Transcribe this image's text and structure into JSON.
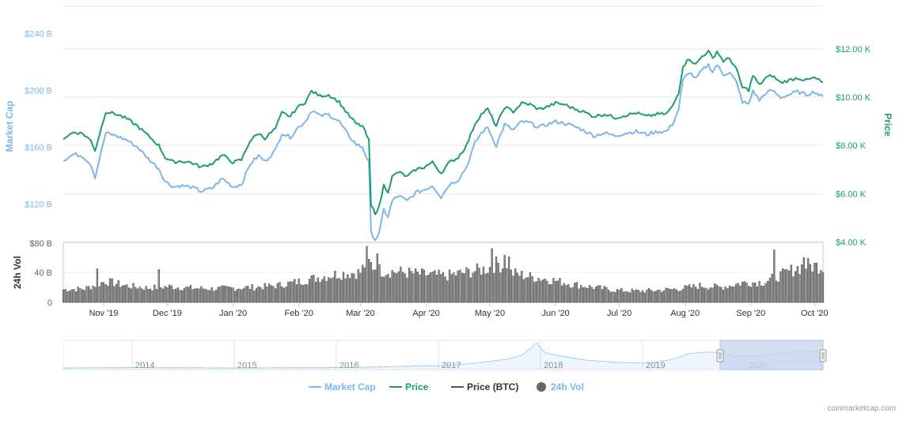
{
  "chart_data": {
    "type": "line",
    "title": "",
    "colors": {
      "market_cap": "#7CB5EC",
      "price": "#1C9C6C",
      "volume_bar": "#8C8C8C",
      "volume_edge": "#333333",
      "navigator_fill": "#C4D3EC",
      "navigator_line": "#7CB5EC"
    },
    "left_axis": {
      "title": "Market Cap",
      "ticks": [
        "$120 B",
        "$160 B",
        "$200 B",
        "$240 B"
      ],
      "values": [
        120,
        160,
        200,
        240
      ],
      "range": [
        93,
        258
      ]
    },
    "right_axis": {
      "title": "Price",
      "ticks": [
        "$4.00 K",
        "$6.00 K",
        "$8.00 K",
        "$10.00 K",
        "$12.00 K"
      ],
      "values": [
        4,
        6,
        8,
        10,
        12
      ],
      "range": [
        3.98,
        13.7
      ]
    },
    "volume_axis": {
      "title": "24h Vol",
      "ticks": [
        "0",
        "40 B",
        "$80 B"
      ],
      "values": [
        0,
        40,
        80
      ],
      "range": [
        0,
        80
      ]
    },
    "x_axis": {
      "ticks": [
        "Nov '19",
        "Dec '19",
        "Jan '20",
        "Feb '20",
        "Mar '20",
        "Apr '20",
        "May '20",
        "Jun '20",
        "Jul '20",
        "Aug '20",
        "Sep '20",
        "Oct '20"
      ],
      "tick_days": [
        19,
        49,
        80,
        111,
        140,
        171,
        201,
        232,
        262,
        293,
        324,
        354
      ]
    },
    "series": [
      {
        "name": "Price",
        "unit": "K USD",
        "x_day": [
          0,
          5,
          9,
          13,
          15,
          20,
          25,
          30,
          35,
          40,
          45,
          48,
          52,
          55,
          60,
          65,
          70,
          75,
          80,
          84,
          88,
          92,
          95,
          100,
          103,
          107,
          110,
          114,
          117,
          121,
          125,
          130,
          134,
          138,
          141,
          144,
          145,
          147,
          149,
          151,
          153,
          155,
          158,
          162,
          166,
          170,
          174,
          178,
          182,
          186,
          190,
          194,
          197,
          200,
          204,
          208,
          212,
          216,
          220,
          224,
          228,
          232,
          236,
          240,
          245,
          250,
          255,
          260,
          265,
          270,
          275,
          280,
          284,
          287,
          290,
          292,
          295,
          298,
          301,
          304,
          306,
          308,
          311,
          314,
          317,
          320,
          323,
          325,
          328,
          331,
          334,
          338,
          342,
          346,
          350,
          354,
          358
        ],
        "values": [
          8.3,
          8.55,
          8.5,
          8.2,
          7.8,
          9.4,
          9.3,
          9.1,
          8.8,
          8.4,
          8.0,
          7.5,
          7.3,
          7.35,
          7.3,
          7.1,
          7.25,
          7.6,
          7.3,
          7.4,
          8.2,
          8.5,
          8.3,
          8.7,
          9.35,
          9.2,
          9.55,
          9.8,
          10.25,
          10.05,
          10.1,
          9.8,
          9.3,
          8.9,
          8.8,
          8.2,
          5.5,
          5.2,
          5.5,
          6.35,
          6.1,
          6.7,
          6.9,
          6.7,
          7.0,
          7.1,
          7.3,
          6.85,
          7.3,
          7.5,
          8.0,
          8.9,
          9.3,
          9.5,
          8.8,
          9.6,
          9.4,
          9.75,
          9.7,
          9.5,
          9.6,
          9.75,
          9.7,
          9.55,
          9.4,
          9.2,
          9.3,
          9.15,
          9.25,
          9.35,
          9.2,
          9.3,
          9.3,
          9.6,
          10.2,
          11.3,
          11.6,
          11.35,
          11.7,
          11.9,
          11.6,
          11.9,
          11.5,
          11.6,
          11.2,
          10.4,
          10.3,
          10.9,
          10.5,
          10.8,
          10.9,
          10.6,
          10.7,
          10.8,
          10.7,
          10.8,
          10.6
        ]
      },
      {
        "name": "Market Cap",
        "unit": "B USD",
        "x_day": [
          0,
          5,
          9,
          13,
          15,
          20,
          25,
          30,
          35,
          40,
          45,
          48,
          52,
          55,
          60,
          65,
          70,
          75,
          80,
          84,
          88,
          92,
          95,
          100,
          103,
          107,
          110,
          114,
          117,
          121,
          125,
          130,
          134,
          138,
          141,
          144,
          145,
          147,
          149,
          151,
          153,
          155,
          158,
          162,
          166,
          170,
          174,
          178,
          182,
          186,
          190,
          194,
          197,
          200,
          204,
          208,
          212,
          216,
          220,
          224,
          228,
          232,
          236,
          240,
          245,
          250,
          255,
          260,
          265,
          270,
          275,
          280,
          284,
          287,
          290,
          292,
          295,
          298,
          301,
          304,
          306,
          308,
          311,
          314,
          317,
          320,
          323,
          325,
          328,
          331,
          334,
          338,
          342,
          346,
          350,
          354,
          358
        ],
        "values": [
          151,
          155,
          154,
          148,
          139,
          170,
          168,
          165,
          160,
          152,
          145,
          136,
          132,
          133,
          132,
          129,
          131,
          138,
          132,
          134,
          148,
          154,
          150,
          158,
          170,
          167,
          173,
          178,
          186,
          182,
          183,
          178,
          169,
          162,
          160,
          149,
          100,
          95,
          100,
          116,
          111,
          122,
          126,
          122,
          128,
          130,
          133,
          125,
          134,
          137,
          146,
          163,
          170,
          174,
          161,
          176,
          172,
          178,
          177,
          174,
          176,
          178,
          177,
          175,
          172,
          168,
          170,
          168,
          170,
          171,
          169,
          171,
          171,
          176,
          187,
          207,
          213,
          208,
          214,
          218,
          213,
          218,
          211,
          213,
          206,
          192,
          190,
          200,
          193,
          198,
          200,
          195,
          197,
          199,
          197,
          199,
          195
        ]
      },
      {
        "name": "24h Vol",
        "unit": "B USD",
        "x_day": [
          0,
          10,
          20,
          25,
          30,
          40,
          50,
          60,
          70,
          80,
          90,
          100,
          110,
          120,
          130,
          140,
          143,
          146,
          150,
          160,
          170,
          180,
          190,
          200,
          205,
          210,
          220,
          230,
          240,
          250,
          260,
          270,
          280,
          290,
          300,
          310,
          320,
          330,
          340,
          345,
          350,
          358
        ],
        "values": [
          17,
          18,
          28,
          25,
          22,
          19,
          21,
          19,
          18,
          19,
          20,
          22,
          27,
          33,
          38,
          40,
          55,
          48,
          42,
          40,
          37,
          35,
          40,
          45,
          52,
          40,
          34,
          30,
          24,
          20,
          16,
          15,
          16,
          18,
          22,
          20,
          26,
          27,
          38,
          45,
          49,
          48
        ]
      },
      {
        "name": "Price (BTC)",
        "values": []
      }
    ],
    "volume_spikes": [
      {
        "x_day": 16,
        "value": 45
      },
      {
        "x_day": 45,
        "value": 44
      },
      {
        "x_day": 143,
        "value": 75
      },
      {
        "x_day": 148,
        "value": 65
      },
      {
        "x_day": 202,
        "value": 72
      },
      {
        "x_day": 208,
        "value": 63
      },
      {
        "x_day": 210,
        "value": 61
      },
      {
        "x_day": 335,
        "value": 70
      },
      {
        "x_day": 349,
        "value": 60
      }
    ],
    "navigator": {
      "years": [
        "2014",
        "2015",
        "2016",
        "2017",
        "2018",
        "2019",
        "2020"
      ],
      "selected_range": "Oct '19 – Oct '20"
    },
    "legend": {
      "placement": "bottom-center",
      "items": [
        "Market Cap",
        "Price",
        "Price (BTC)",
        "24h Vol"
      ]
    },
    "credits": "coinmarketcap.com"
  }
}
